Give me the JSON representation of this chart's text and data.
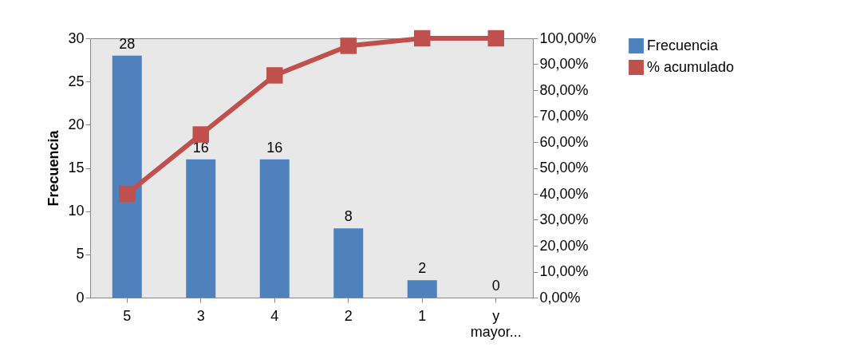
{
  "chart_data": {
    "type": "bar",
    "ylabel": "Frecuencia",
    "categories": [
      "5",
      "3",
      "4",
      "2",
      "1",
      "y mayor..."
    ],
    "series": [
      {
        "name": "Frecuencia",
        "color": "#4f81bd",
        "values": [
          28,
          16,
          16,
          8,
          2,
          0
        ],
        "value_labels": [
          "28",
          "16",
          "16",
          "8",
          "2",
          "0"
        ]
      },
      {
        "name": "% acumulado",
        "type": "line",
        "axis": "y2",
        "color": "#c0504d",
        "marker": "square",
        "values": [
          40,
          62.9,
          85.7,
          97.1,
          100,
          100
        ]
      }
    ],
    "ylim": [
      0,
      30
    ],
    "yticks": [
      0,
      5,
      10,
      15,
      20,
      25,
      30
    ],
    "y2lim": [
      0,
      100
    ],
    "y2ticks": [
      {
        "value": 0,
        "label": "0,00%"
      },
      {
        "value": 10,
        "label": "10,00%"
      },
      {
        "value": 20,
        "label": "20,00%"
      },
      {
        "value": 30,
        "label": "30,00%"
      },
      {
        "value": 40,
        "label": "40,00%"
      },
      {
        "value": 50,
        "label": "50,00%"
      },
      {
        "value": 60,
        "label": "60,00%"
      },
      {
        "value": 70,
        "label": "70,00%"
      },
      {
        "value": 80,
        "label": "80,00%"
      },
      {
        "value": 90,
        "label": "90,00%"
      },
      {
        "value": 100,
        "label": "100,00%"
      }
    ],
    "legend": "right"
  }
}
